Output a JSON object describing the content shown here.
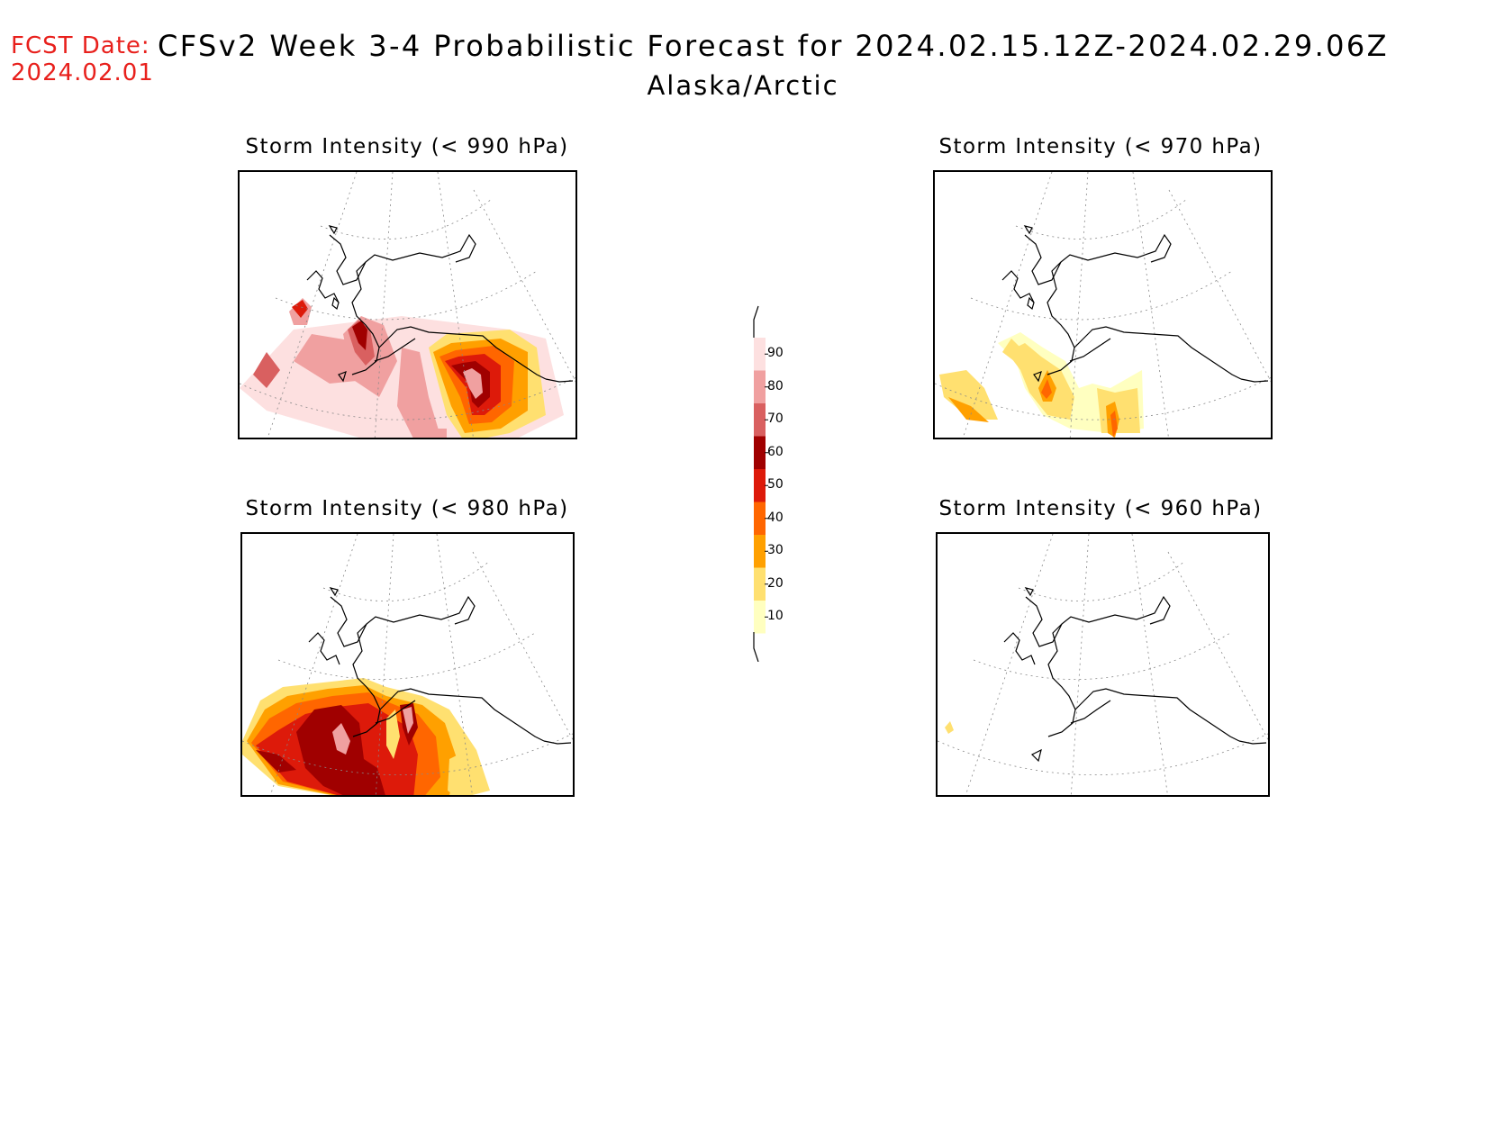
{
  "header": {
    "fcst_label": "FCST Date:",
    "fcst_date": "2024.02.01",
    "title": "CFSv2 Week 3-4 Probabilistic Forecast for 2024.02.15.12Z-2024.02.29.06Z",
    "region": "Alaska/Arctic"
  },
  "panels": [
    {
      "id": "p990",
      "title": "Storm Intensity (< 990 hPa)"
    },
    {
      "id": "p970",
      "title": "Storm Intensity (< 970 hPa)"
    },
    {
      "id": "p980",
      "title": "Storm Intensity (< 980 hPa)"
    },
    {
      "id": "p960",
      "title": "Storm Intensity (< 960 hPa)"
    }
  ],
  "colorbar": {
    "levels": [
      "90",
      "80",
      "70",
      "60",
      "50",
      "40",
      "30",
      "20",
      "10"
    ],
    "colors": [
      "#fde0e0",
      "#f0a0a0",
      "#d96060",
      "#a00000",
      "#dd1a0a",
      "#ff6600",
      "#ffa000",
      "#ffe070",
      "#ffffc0"
    ]
  }
}
